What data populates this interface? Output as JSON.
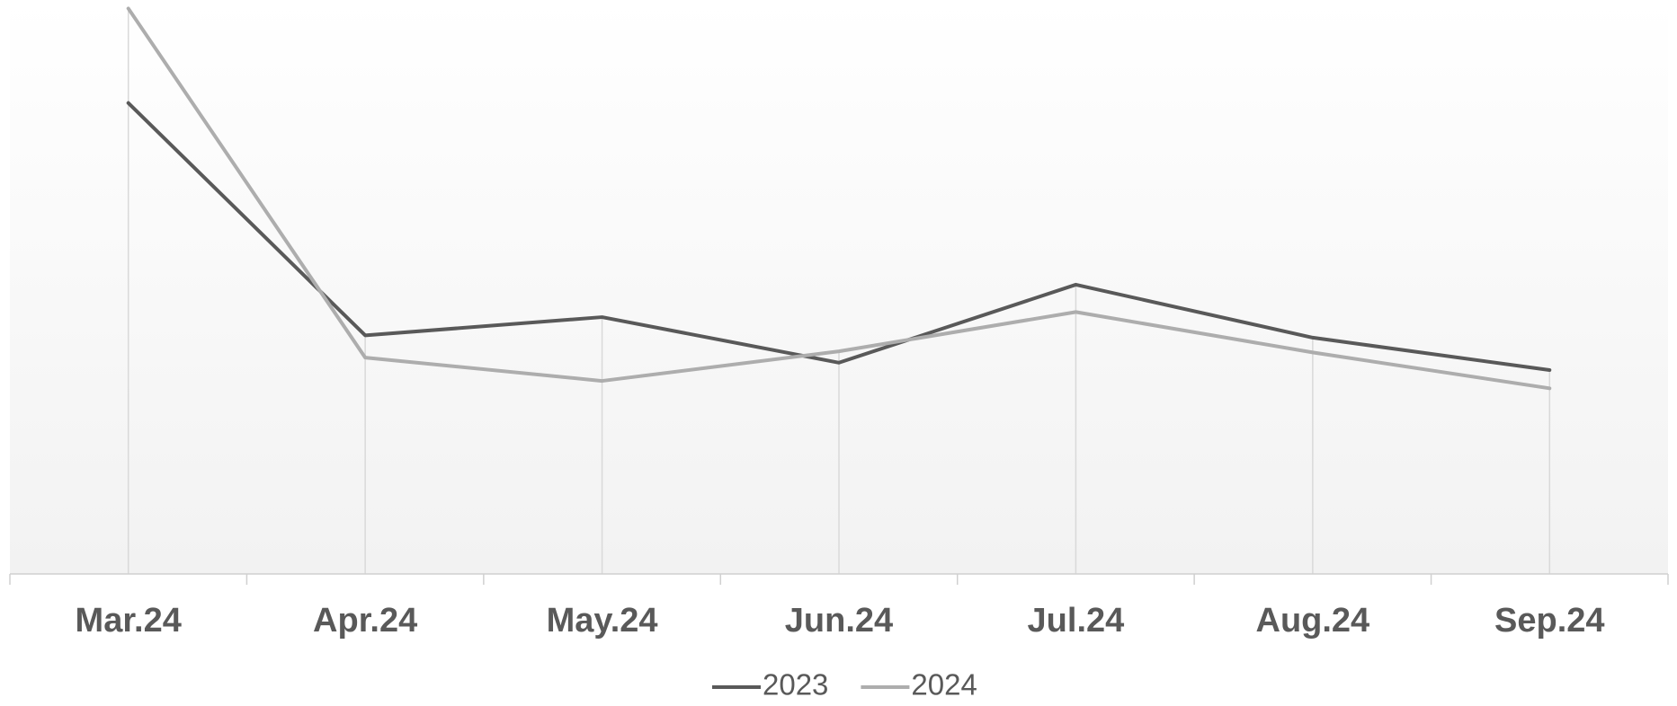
{
  "chart_data": {
    "type": "line",
    "categories": [
      "Mar.24",
      "Apr.24",
      "May.24",
      "Jun.24",
      "Jul.24",
      "Aug.24",
      "Sep.24"
    ],
    "series": [
      {
        "name": "2023",
        "color": "#595959",
        "values": [
          82.7,
          41.9,
          45.1,
          37.1,
          50.8,
          41.5,
          35.8
        ]
      },
      {
        "name": "2024",
        "color": "#adadad",
        "values": [
          99.3,
          38.0,
          33.9,
          39.1,
          46.0,
          38.9,
          32.6
        ]
      }
    ],
    "ylim": [
      0,
      100
    ],
    "legend": "bottom"
  }
}
